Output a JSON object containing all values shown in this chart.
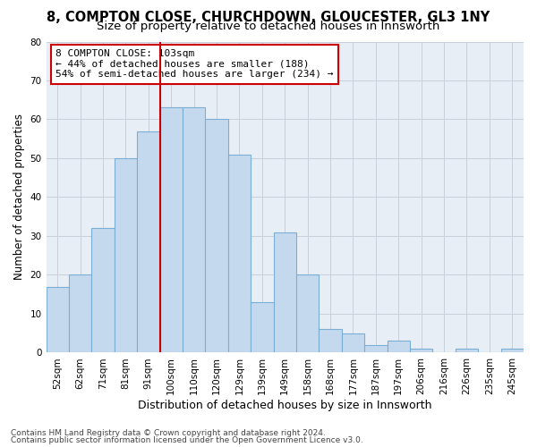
{
  "title1": "8, COMPTON CLOSE, CHURCHDOWN, GLOUCESTER, GL3 1NY",
  "title2": "Size of property relative to detached houses in Innsworth",
  "xlabel": "Distribution of detached houses by size in Innsworth",
  "ylabel": "Number of detached properties",
  "categories": [
    "52sqm",
    "62sqm",
    "71sqm",
    "81sqm",
    "91sqm",
    "100sqm",
    "110sqm",
    "120sqm",
    "129sqm",
    "139sqm",
    "149sqm",
    "158sqm",
    "168sqm",
    "177sqm",
    "187sqm",
    "197sqm",
    "206sqm",
    "216sqm",
    "226sqm",
    "235sqm",
    "245sqm"
  ],
  "heights": [
    17,
    20,
    32,
    50,
    57,
    63,
    63,
    60,
    51,
    13,
    31,
    20,
    6,
    5,
    2,
    3,
    1,
    0,
    1,
    0,
    1
  ],
  "bar_color": "#c5d9ee",
  "bar_edge_color": "#7aaed4",
  "vline_color": "#cc0000",
  "vline_index": 5,
  "annotation_text": "8 COMPTON CLOSE: 103sqm\n← 44% of detached houses are smaller (188)\n54% of semi-detached houses are larger (234) →",
  "ylim": [
    0,
    80
  ],
  "yticks": [
    0,
    10,
    20,
    30,
    40,
    50,
    60,
    70,
    80
  ],
  "grid_color": "#c8d0dc",
  "bg_color": "#e8eef5",
  "footnote1": "Contains HM Land Registry data © Crown copyright and database right 2024.",
  "footnote2": "Contains public sector information licensed under the Open Government Licence v3.0.",
  "title1_fontsize": 10.5,
  "title2_fontsize": 9.5,
  "xlabel_fontsize": 9,
  "ylabel_fontsize": 8.5,
  "tick_fontsize": 7.5,
  "annot_fontsize": 8,
  "footnote_fontsize": 6.5
}
